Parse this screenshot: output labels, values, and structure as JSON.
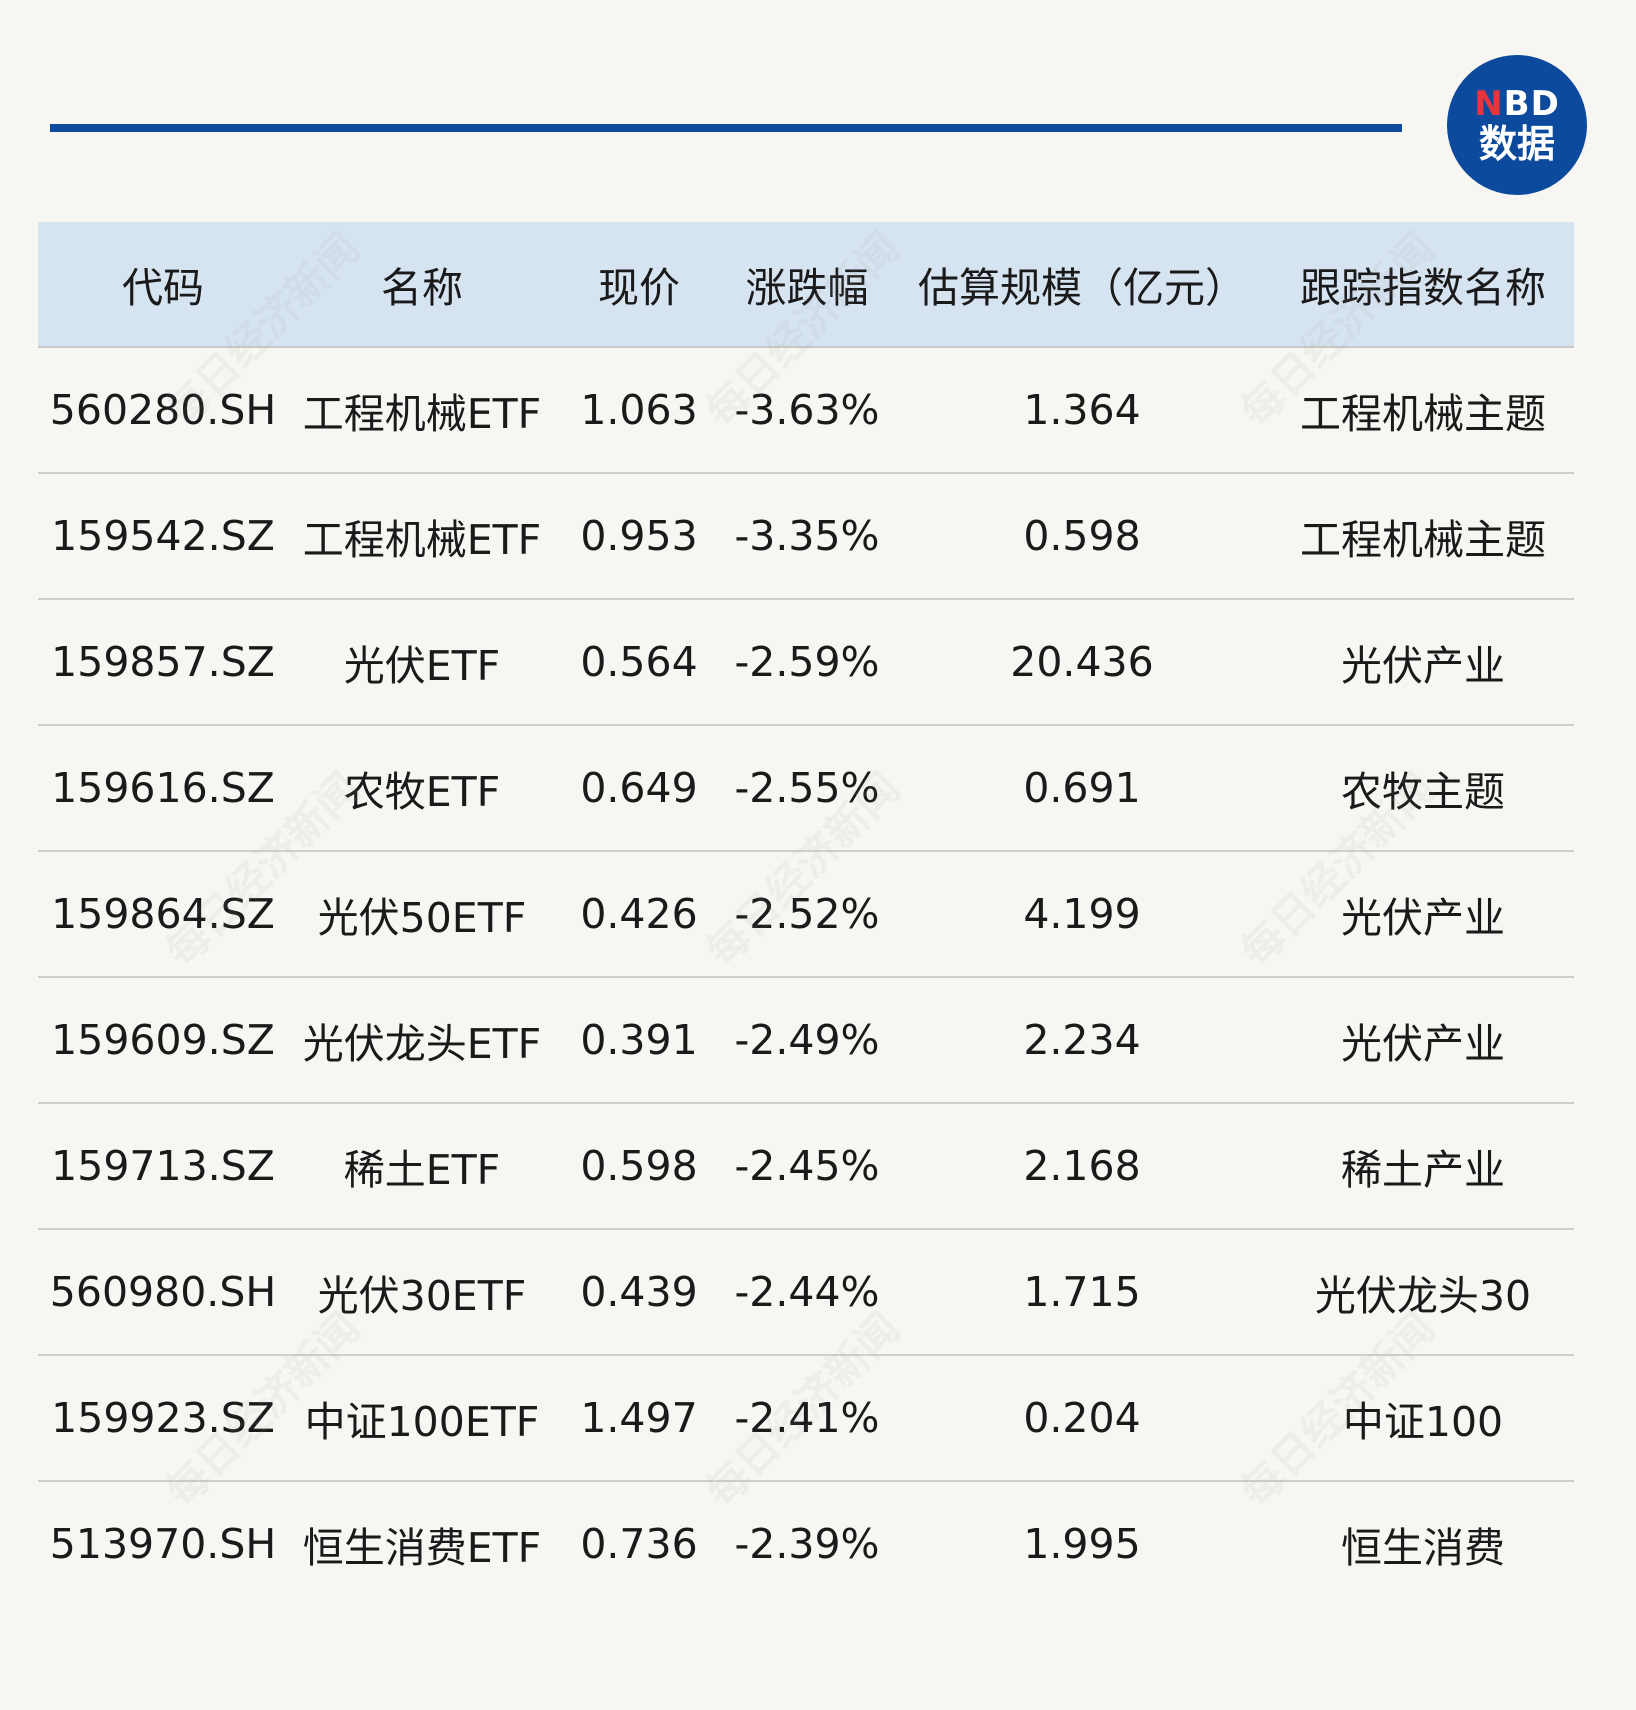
{
  "logo": {
    "top_n": "N",
    "top_bd": "BD",
    "bottom": "数据"
  },
  "watermark": "每日经济新闻",
  "table": {
    "headers": [
      "代码",
      "名称",
      "现价",
      "涨跌幅",
      "估算规模（亿元）",
      "跟踪指数名称"
    ],
    "rows": [
      [
        "560280.SH",
        "工程机械ETF",
        "1.063",
        "-3.63%",
        "1.364",
        "工程机械主题"
      ],
      [
        "159542.SZ",
        "工程机械ETF",
        "0.953",
        "-3.35%",
        "0.598",
        "工程机械主题"
      ],
      [
        "159857.SZ",
        "光伏ETF",
        "0.564",
        "-2.59%",
        "20.436",
        "光伏产业"
      ],
      [
        "159616.SZ",
        "农牧ETF",
        "0.649",
        "-2.55%",
        "0.691",
        "农牧主题"
      ],
      [
        "159864.SZ",
        "光伏50ETF",
        "0.426",
        "-2.52%",
        "4.199",
        "光伏产业"
      ],
      [
        "159609.SZ",
        "光伏龙头ETF",
        "0.391",
        "-2.49%",
        "2.234",
        "光伏产业"
      ],
      [
        "159713.SZ",
        "稀土ETF",
        "0.598",
        "-2.45%",
        "2.168",
        "稀土产业"
      ],
      [
        "560980.SH",
        "光伏30ETF",
        "0.439",
        "-2.44%",
        "1.715",
        "光伏龙头30"
      ],
      [
        "159923.SZ",
        "中证100ETF",
        "1.497",
        "-2.41%",
        "0.204",
        "中证100"
      ],
      [
        "513970.SH",
        "恒生消费ETF",
        "0.736",
        "-2.39%",
        "1.995",
        "恒生消费"
      ]
    ]
  },
  "colors": {
    "accent": "#0b4a9c",
    "header_bg": "#d6e4f1",
    "page_bg": "#f8f6f2",
    "logo_n": "#e8343b"
  }
}
